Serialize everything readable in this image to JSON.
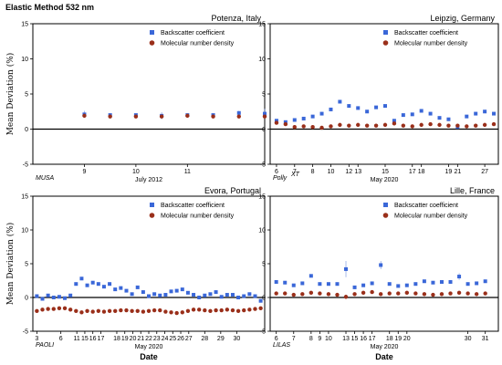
{
  "figure": {
    "title": "Elastic Method  532 nm",
    "colors": {
      "backscatter": "#3a67d8",
      "molecular": "#9a2f1a"
    }
  },
  "chart_data": [
    {
      "type": "scatter",
      "title": "Potenza, Italy",
      "instrument": "MUSA",
      "month_label": "July 2012",
      "xlabel": "",
      "ylabel": "Mean Deviation (%)",
      "ylim": [
        -5,
        15
      ],
      "yticks": [
        -5,
        0,
        5,
        10,
        15
      ],
      "xlim": [
        8.0,
        12.5
      ],
      "xticks": [
        "9",
        "10",
        "11"
      ],
      "xtick_values": [
        9,
        10,
        11
      ],
      "legend": [
        "Backscatter coefficient",
        "Molecular number density"
      ],
      "legend_position": "top-right",
      "series": [
        {
          "name": "Backscatter coefficient",
          "marker": "square",
          "x": [
            9,
            9.5,
            10,
            10.5,
            11,
            11.5,
            12,
            12.5
          ],
          "y": [
            2.1,
            2.0,
            2.0,
            1.9,
            2.0,
            2.0,
            2.3,
            2.2
          ],
          "err": [
            0.5,
            0.2,
            0.2,
            0.5,
            0.2,
            0.2,
            0.3,
            0.7
          ]
        },
        {
          "name": "Molecular number density",
          "marker": "circle",
          "x": [
            9,
            9.5,
            10,
            10.5,
            11,
            11.5,
            12,
            12.5
          ],
          "y": [
            1.9,
            1.8,
            1.8,
            1.8,
            1.9,
            1.8,
            1.8,
            1.8
          ]
        }
      ]
    },
    {
      "type": "scatter",
      "title": "Leipzig, Germany",
      "instrument": "Polly",
      "instrument_superscript": "XT",
      "month_label": "May 2020",
      "xlabel": "",
      "ylabel": "",
      "ylim": [
        -5,
        15
      ],
      "yticks": [
        -5,
        0,
        5,
        10,
        15
      ],
      "xlim": [
        5.3,
        30.5
      ],
      "xticks": [
        "6",
        "7",
        "8",
        "10",
        "12",
        "13",
        "15",
        "17",
        "18",
        "19",
        "21",
        "27"
      ],
      "xtick_values": [
        6,
        8,
        10,
        12,
        14,
        15,
        18,
        21,
        22,
        25,
        26,
        29
      ],
      "legend": [
        "Backscatter coefficient",
        "Molecular number density"
      ],
      "legend_position": "top-right",
      "series": [
        {
          "name": "Backscatter coefficient",
          "marker": "square",
          "x": [
            6,
            7,
            8,
            9,
            10,
            11,
            12,
            13,
            14,
            15,
            16,
            17,
            18,
            19,
            20,
            21,
            22,
            23,
            24,
            25,
            26,
            27,
            28,
            29,
            30
          ],
          "y": [
            1.2,
            1.0,
            1.3,
            1.5,
            1.8,
            2.2,
            2.8,
            3.9,
            3.3,
            3.0,
            2.5,
            3.1,
            3.3,
            1.2,
            2.0,
            2.1,
            2.6,
            2.2,
            1.6,
            1.4,
            0.3,
            1.8,
            2.2,
            2.5,
            2.2
          ]
        },
        {
          "name": "Molecular number density",
          "marker": "circle",
          "x": [
            6,
            7,
            8,
            9,
            10,
            11,
            12,
            13,
            14,
            15,
            16,
            17,
            18,
            19,
            20,
            21,
            22,
            23,
            24,
            25,
            26,
            27,
            28,
            29,
            30
          ],
          "y": [
            0.9,
            0.7,
            0.3,
            0.4,
            0.3,
            0.2,
            0.4,
            0.6,
            0.5,
            0.6,
            0.5,
            0.5,
            0.6,
            0.8,
            0.5,
            0.4,
            0.6,
            0.7,
            0.6,
            0.5,
            0.5,
            0.4,
            0.5,
            0.6,
            0.7
          ]
        }
      ]
    },
    {
      "type": "scatter",
      "title": "Evora, Portugal",
      "instrument": "PAOLI",
      "month_label": "May 2020",
      "xlabel": "Date",
      "ylabel": "Mean Deviation (%)",
      "ylim": [
        -5,
        15
      ],
      "yticks": [
        -5,
        0,
        5,
        10,
        15
      ],
      "xlim": [
        2.5,
        31.5
      ],
      "xticks": [
        "3",
        "6",
        "11",
        "15",
        "16",
        "17",
        "18",
        "19",
        "20",
        "21",
        "22",
        "23",
        "24",
        "25",
        "26",
        "27",
        "28",
        "29",
        "30"
      ],
      "xtick_values": [
        3,
        6,
        8,
        9,
        10,
        11,
        13,
        14,
        15,
        16,
        17,
        18,
        19,
        20,
        21,
        22,
        24,
        26,
        28
      ],
      "legend": [
        "Backscatter coefficient",
        "Molecular number density"
      ],
      "legend_position": "top-right",
      "series": [
        {
          "name": "Backscatter coefficient",
          "marker": "square",
          "x": [
            3,
            3.7,
            4.4,
            5.1,
            5.8,
            6.5,
            7.2,
            7.9,
            8.6,
            9.3,
            10,
            10.7,
            11.4,
            12.1,
            12.8,
            13.5,
            14.2,
            14.9,
            15.6,
            16.3,
            17,
            17.7,
            18.4,
            19.1,
            19.8,
            20.5,
            21.2,
            21.9,
            22.6,
            23.3,
            24,
            24.7,
            25.4,
            26.1,
            26.8,
            27.5,
            28.2,
            28.9,
            29.6,
            30.3,
            31
          ],
          "y": [
            0.2,
            -0.2,
            0.3,
            0.0,
            0.1,
            -0.1,
            0.3,
            2.0,
            2.8,
            1.8,
            2.2,
            2.0,
            1.6,
            2.0,
            1.2,
            1.4,
            1.0,
            0.5,
            1.5,
            0.8,
            0.2,
            0.5,
            0.3,
            0.4,
            0.9,
            1.0,
            1.2,
            0.7,
            0.4,
            0.0,
            0.3,
            0.5,
            0.8,
            0.1,
            0.4,
            0.4,
            0.0,
            0.2,
            0.5,
            0.2,
            -0.5
          ]
        },
        {
          "name": "Molecular number density",
          "marker": "circle",
          "x": [
            3,
            3.7,
            4.4,
            5.1,
            5.8,
            6.5,
            7.2,
            7.9,
            8.6,
            9.3,
            10,
            10.7,
            11.4,
            12.1,
            12.8,
            13.5,
            14.2,
            14.9,
            15.6,
            16.3,
            17,
            17.7,
            18.4,
            19.1,
            19.8,
            20.5,
            21.2,
            21.9,
            22.6,
            23.3,
            24,
            24.7,
            25.4,
            26.1,
            26.8,
            27.5,
            28.2,
            28.9,
            29.6,
            30.3,
            31
          ],
          "y": [
            -2.0,
            -1.8,
            -1.7,
            -1.7,
            -1.6,
            -1.6,
            -1.8,
            -2.0,
            -2.2,
            -2.0,
            -2.1,
            -2.0,
            -2.1,
            -2.0,
            -2.0,
            -1.9,
            -1.9,
            -2.0,
            -2.0,
            -2.1,
            -2.0,
            -1.9,
            -1.9,
            -2.1,
            -2.2,
            -2.3,
            -2.2,
            -2.0,
            -1.8,
            -1.8,
            -1.9,
            -2.0,
            -1.9,
            -1.9,
            -1.8,
            -1.9,
            -2.0,
            -1.9,
            -1.8,
            -1.7,
            -1.6
          ]
        }
      ]
    },
    {
      "type": "scatter",
      "title": "Lille, France",
      "instrument": "LILAS",
      "month_label": "May 2020",
      "xlabel": "Date",
      "ylabel": "",
      "ylim": [
        -5,
        15
      ],
      "yticks": [
        -5,
        0,
        5,
        10,
        15
      ],
      "xlim": [
        5.3,
        31.5
      ],
      "xticks": [
        "6",
        "7",
        "8",
        "9",
        "10",
        "13",
        "15",
        "16",
        "17",
        "18",
        "19",
        "20",
        "30",
        "31"
      ],
      "xtick_values": [
        6,
        8,
        10,
        11,
        12,
        14,
        15,
        16,
        17,
        19,
        20,
        21,
        28,
        30
      ],
      "legend": [
        "Backscatter coefficient",
        "Molecular number density"
      ],
      "legend_position": "top-right",
      "series": [
        {
          "name": "Backscatter coefficient",
          "marker": "square",
          "x": [
            6,
            7,
            8,
            9,
            10,
            11,
            12,
            13,
            14,
            15,
            16,
            17,
            18,
            19,
            20,
            21,
            22,
            23,
            24,
            25,
            26,
            27,
            28,
            29,
            30
          ],
          "y": [
            2.3,
            2.2,
            1.8,
            2.1,
            3.2,
            2.0,
            2.0,
            2.0,
            4.2,
            1.5,
            1.8,
            2.1,
            4.8,
            2.0,
            1.7,
            1.8,
            2.0,
            2.4,
            2.2,
            2.3,
            2.3,
            3.1,
            2.0,
            2.1,
            2.4
          ],
          "err": [
            0,
            0,
            0,
            0,
            0,
            0,
            0,
            0,
            1.2,
            0,
            0,
            0,
            0.6,
            0,
            0,
            0,
            0,
            0,
            0,
            0,
            0,
            0.5,
            0,
            0,
            0
          ]
        },
        {
          "name": "Molecular number density",
          "marker": "circle",
          "x": [
            6,
            7,
            8,
            9,
            10,
            11,
            12,
            13,
            14,
            15,
            16,
            17,
            18,
            19,
            20,
            21,
            22,
            23,
            24,
            25,
            26,
            27,
            28,
            29,
            30
          ],
          "y": [
            0.6,
            0.6,
            0.4,
            0.5,
            0.7,
            0.6,
            0.5,
            0.4,
            0.1,
            0.5,
            0.7,
            0.8,
            0.5,
            0.6,
            0.6,
            0.7,
            0.6,
            0.5,
            0.4,
            0.5,
            0.6,
            0.7,
            0.6,
            0.5,
            0.6
          ]
        }
      ]
    }
  ]
}
